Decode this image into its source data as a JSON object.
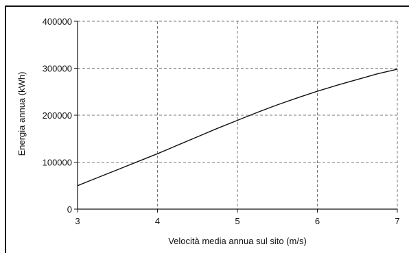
{
  "chart_data": {
    "type": "line",
    "title": "",
    "xlabel": "Velocità media annua sul sito  (m/s)",
    "ylabel": "Energia annua  (kWh)",
    "xlim": [
      3,
      7
    ],
    "ylim": [
      0,
      400000
    ],
    "x_ticks": [
      "3",
      "4",
      "5",
      "6",
      "7"
    ],
    "y_ticks": [
      "0",
      "100000",
      "200000",
      "300000",
      "400000"
    ],
    "grid": true,
    "grid_style": "dashed",
    "series": [
      {
        "color": "#111111",
        "x": [
          3.0,
          3.25,
          3.5,
          3.75,
          4.0,
          4.25,
          4.5,
          4.75,
          5.0,
          5.25,
          5.5,
          5.75,
          6.0,
          6.25,
          6.5,
          6.75,
          7.0
        ],
        "y": [
          50000,
          67000,
          84000,
          101000,
          118000,
          136000,
          154000,
          172000,
          189000,
          206000,
          222000,
          237000,
          251000,
          264000,
          276000,
          288000,
          298000
        ]
      }
    ]
  }
}
